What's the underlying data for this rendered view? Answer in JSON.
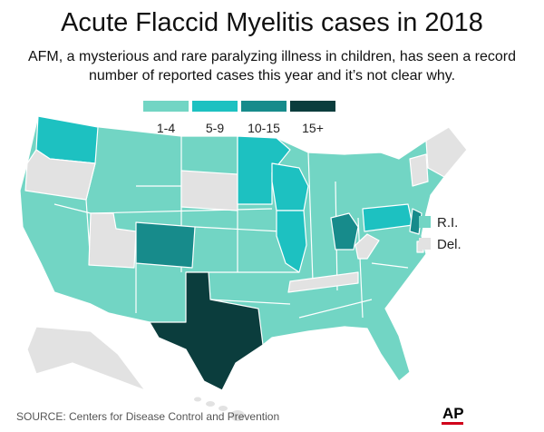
{
  "header": {
    "title": "Acute Flaccid Myelitis cases in 2018",
    "subtitle": [
      "AFM, a mysterious and rare paralyzing illness in children, has seen a record",
      "number of reported cases this year and it’s not clear why."
    ]
  },
  "legend": [
    {
      "label": "1-4",
      "color": "#72d5c4"
    },
    {
      "label": "5-9",
      "color": "#1dc1c1"
    },
    {
      "label": "10-15",
      "color": "#178b8b"
    },
    {
      "label": "15+",
      "color": "#0b3d3d"
    }
  ],
  "insets": [
    {
      "label": "R.I.",
      "color": "#72d5c4"
    },
    {
      "label": "Del.",
      "color": "#e2e2e2"
    }
  ],
  "source": "SOURCE: Centers for Disease Control and Prevention",
  "logo": "AP"
}
